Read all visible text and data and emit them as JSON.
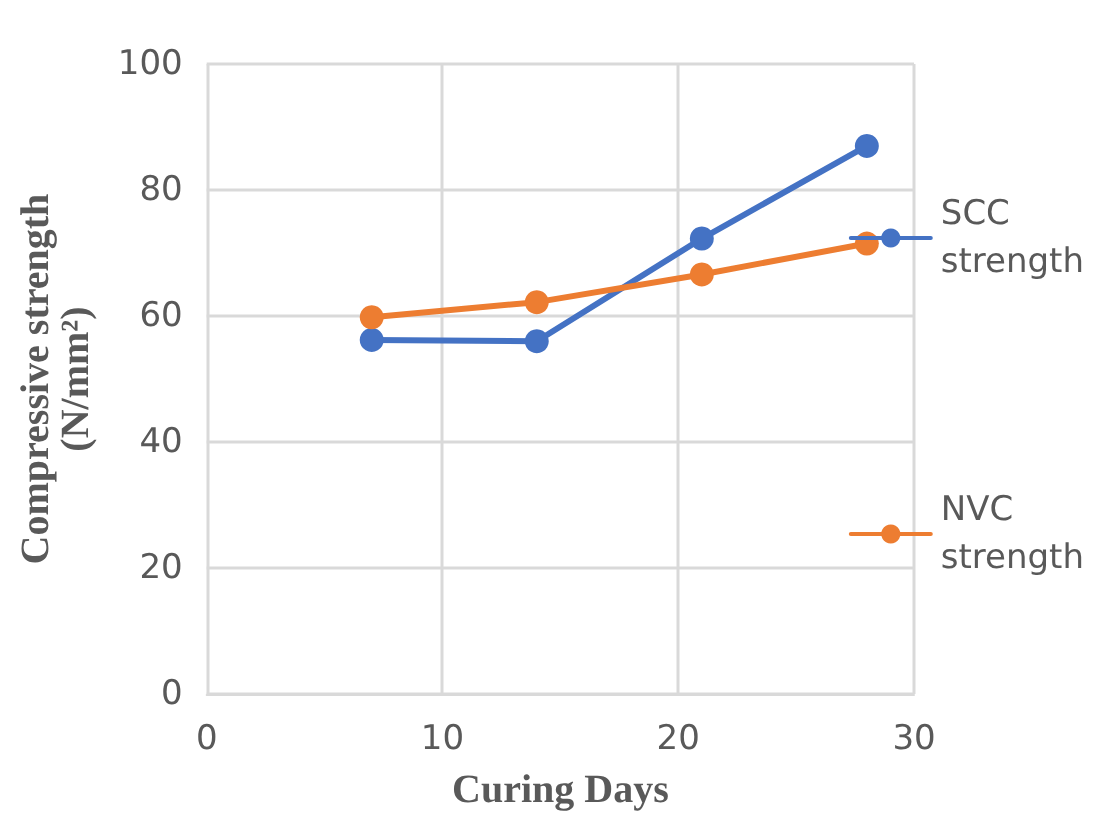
{
  "chart_data": {
    "type": "line",
    "xlabel": "Curing Days",
    "ylabel": "Compressive strength (N/mm²)",
    "x": [
      7,
      14,
      21,
      28
    ],
    "series": [
      {
        "name": "SCC strength",
        "color": "#4472c4",
        "values": [
          56.2,
          56.0,
          72.3,
          87.0
        ]
      },
      {
        "name": "NVC strength",
        "color": "#ed7d31",
        "values": [
          59.8,
          62.2,
          66.6,
          71.5
        ]
      }
    ],
    "xlim": [
      0,
      30
    ],
    "xticks": [
      0,
      10,
      20,
      30
    ],
    "ylim": [
      0,
      100
    ],
    "yticks": [
      0,
      20,
      40,
      60,
      80,
      100
    ],
    "grid": true,
    "legend": "right",
    "marker": "circle",
    "line_style": "solid"
  }
}
